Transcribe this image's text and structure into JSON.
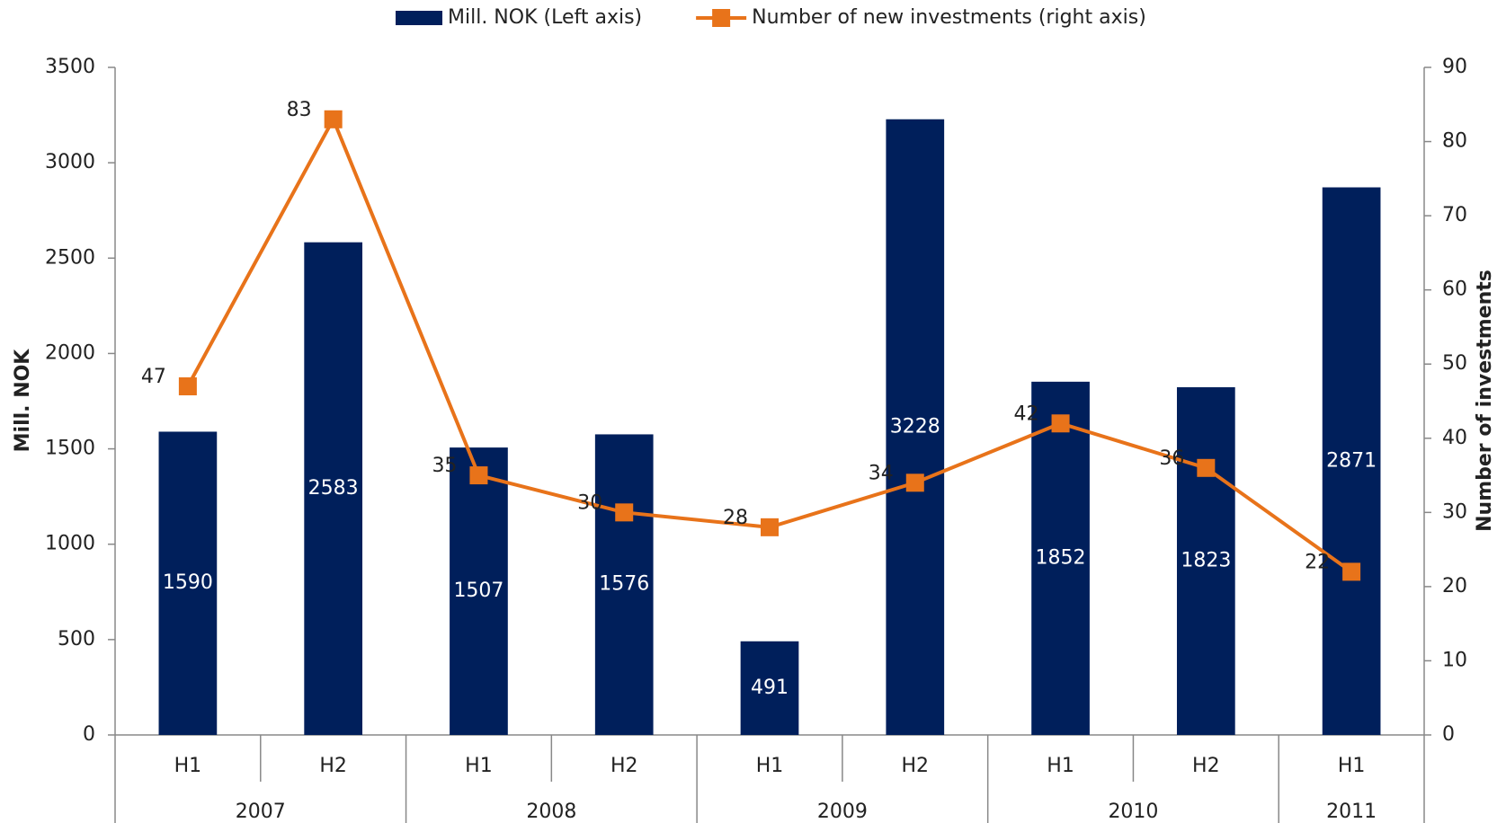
{
  "chart_data": {
    "type": "bar",
    "groups": [
      {
        "label": "2007",
        "categories": [
          "H1",
          "H2"
        ]
      },
      {
        "label": "2008",
        "categories": [
          "H1",
          "H2"
        ]
      },
      {
        "label": "2009",
        "categories": [
          "H1",
          "H2"
        ]
      },
      {
        "label": "2010",
        "categories": [
          "H1",
          "H2"
        ]
      },
      {
        "label": "2011",
        "categories": [
          "H1"
        ]
      }
    ],
    "series": [
      {
        "name": "Mill. NOK (Left axis)",
        "type": "bar",
        "color": "#001f5b",
        "values": [
          1590,
          2583,
          1507,
          1576,
          491,
          3228,
          1852,
          1823,
          2871
        ]
      },
      {
        "name": "Number of new investments (right axis)",
        "type": "line",
        "axis": "y2",
        "color": "#e8731a",
        "values": [
          47,
          83,
          35,
          30,
          28,
          34,
          42,
          36,
          22
        ]
      }
    ],
    "ylabel": "Mill. NOK",
    "y2label": "Number of investments",
    "ylim": [
      0,
      3500
    ],
    "yticks": [
      0,
      500,
      1000,
      1500,
      2000,
      2500,
      3000,
      3500
    ],
    "y2lim": [
      0,
      90
    ],
    "y2ticks": [
      0,
      10,
      20,
      30,
      40,
      50,
      60,
      70,
      80,
      90
    ],
    "legend": "top"
  }
}
